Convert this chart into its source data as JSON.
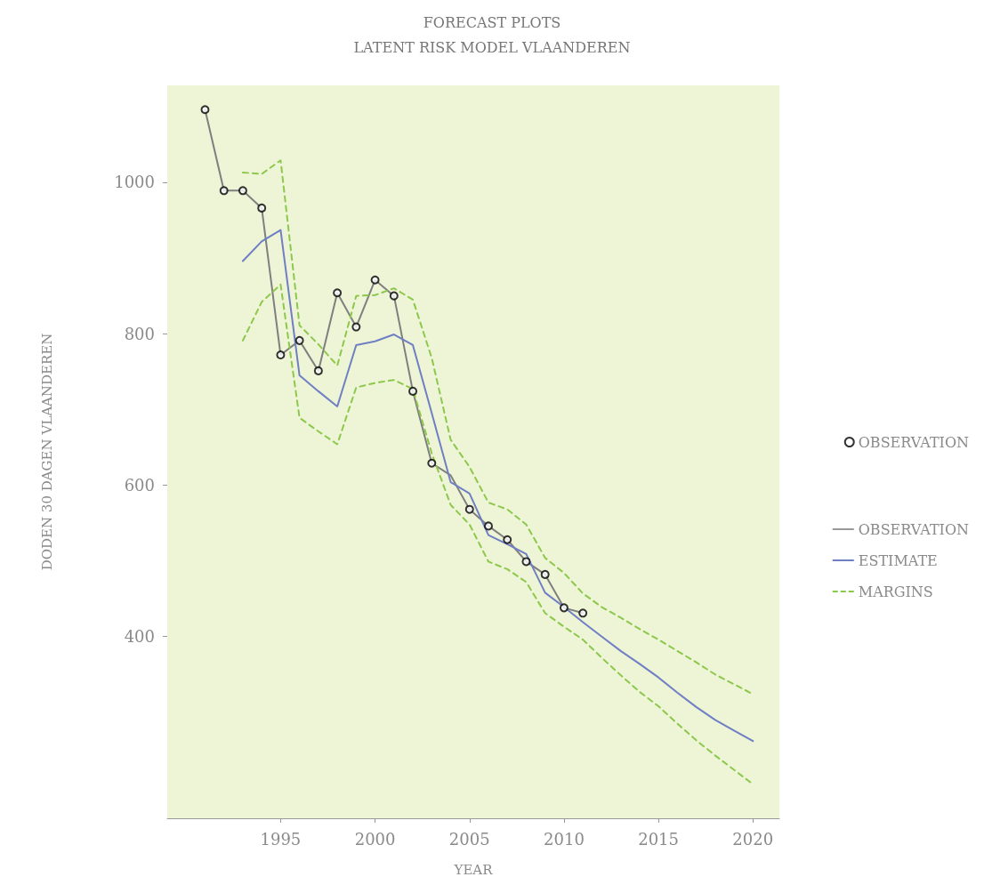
{
  "chart_data": {
    "type": "line",
    "title": "FORECAST PLOTS",
    "subtitle": "LATENT RISK MODEL VLAANDEREN",
    "xlabel": "YEAR",
    "ylabel": "DODEN 30 DAGEN VLAANDEREN",
    "xlim": [
      1989,
      2021.4
    ],
    "xticks": [
      1995,
      2000,
      2005,
      2010,
      2015,
      2020
    ],
    "ylim": [
      160,
      1128
    ],
    "yticks": [
      400,
      600,
      800,
      1000
    ],
    "legend": "right",
    "series": [
      {
        "name": "OBSERVATION",
        "type": "scatter",
        "marker": "circle",
        "color": "#000000",
        "x": [
          1991,
          1992,
          1993,
          1994,
          1995,
          1996,
          1997,
          1998,
          1999,
          2000,
          2001,
          2002,
          2003,
          2005,
          2006,
          2007,
          2008,
          2009,
          2010,
          2011
        ],
        "values": [
          1096,
          989,
          989,
          966,
          772,
          791,
          751,
          854,
          809,
          871,
          850,
          724,
          629,
          568,
          546,
          528,
          499,
          482,
          438,
          431
        ]
      },
      {
        "name": "OBSERVATION",
        "color": "#7f7f7f",
        "x": [
          1991,
          1992,
          1993,
          1994,
          1995,
          1996,
          1997,
          1998,
          1999,
          2000,
          2001,
          2002,
          2003,
          2004,
          2005,
          2006,
          2007,
          2008,
          2009,
          2010,
          2011
        ],
        "values": [
          1096,
          989,
          989,
          966,
          772,
          791,
          751,
          854,
          809,
          871,
          850,
          724,
          629,
          613,
          568,
          546,
          528,
          499,
          482,
          438,
          431
        ]
      },
      {
        "name": "ESTIMATE",
        "color": "#6f7fc4",
        "x": [
          1993,
          1994,
          1995,
          1996,
          1997,
          1998,
          1999,
          2000,
          2001,
          2002,
          2003,
          2004,
          2005,
          2006,
          2007,
          2008,
          2009,
          2010,
          2011,
          2012,
          2013,
          2014,
          2015,
          2016,
          2017,
          2018,
          2019,
          2020
        ],
        "values": [
          896,
          922,
          937,
          745,
          724,
          704,
          785,
          790,
          799,
          785,
          695,
          604,
          589,
          534,
          522,
          509,
          458,
          439,
          419,
          400,
          381,
          364,
          346,
          326,
          307,
          290,
          276,
          262
        ]
      },
      {
        "name": "MARGINS",
        "line_style": "dashed",
        "color": "#8cc84b",
        "x": [
          1993,
          1994,
          1995,
          1996,
          1997,
          1998,
          1999,
          2000,
          2001,
          2002,
          2003,
          2004,
          2005,
          2006,
          2007,
          2008,
          2009,
          2010,
          2011,
          2012,
          2013,
          2014,
          2015,
          2016,
          2017,
          2018,
          2019,
          2020
        ],
        "values": [
          1013,
          1011,
          1029,
          811,
          786,
          758,
          850,
          851,
          860,
          845,
          768,
          660,
          624,
          577,
          568,
          548,
          504,
          484,
          457,
          439,
          425,
          410,
          396,
          381,
          366,
          350,
          337,
          324
        ]
      },
      {
        "line_style": "dashed",
        "color": "#8cc84b",
        "x": [
          1993,
          1994,
          1995,
          1996,
          1997,
          1998,
          1999,
          2000,
          2001,
          2002,
          2003,
          2004,
          2005,
          2006,
          2007,
          2008,
          2009,
          2010,
          2011,
          2012,
          2013,
          2014,
          2015,
          2016,
          2017,
          2018,
          2019,
          2020
        ],
        "values": [
          791,
          842,
          865,
          689,
          671,
          654,
          729,
          735,
          739,
          727,
          642,
          574,
          548,
          499,
          489,
          472,
          431,
          413,
          396,
          372,
          349,
          327,
          308,
          285,
          263,
          243,
          224,
          205
        ]
      }
    ]
  }
}
